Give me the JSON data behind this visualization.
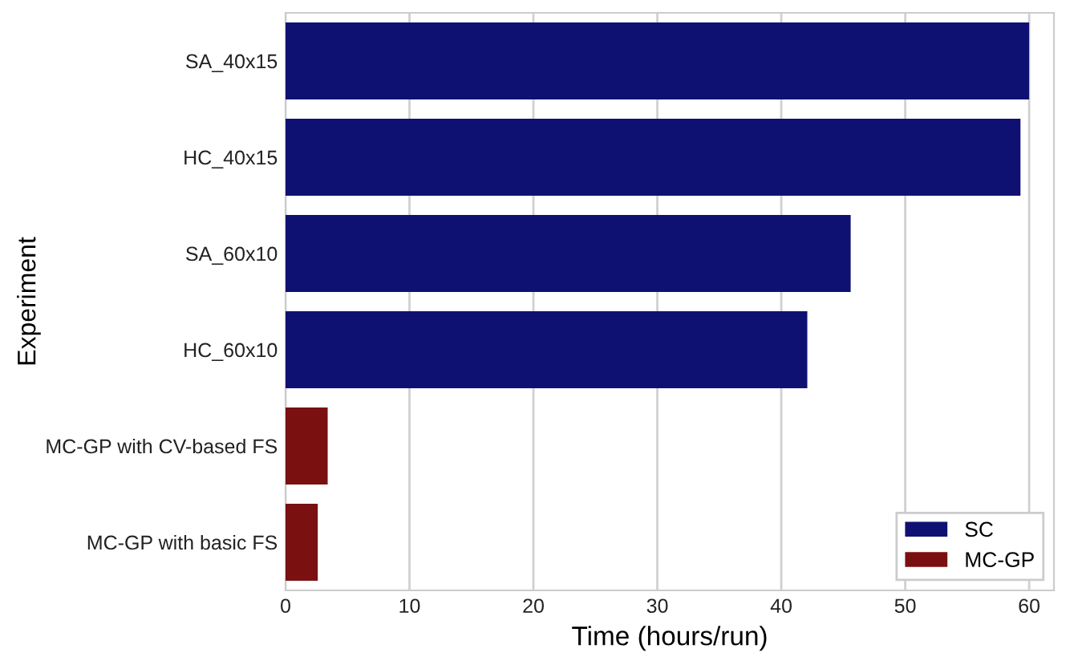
{
  "chart_data": {
    "type": "bar",
    "orientation": "horizontal",
    "xlabel": "Time (hours/run)",
    "ylabel": "Experiment",
    "categories": [
      "SA_40x15",
      "HC_40x15",
      "SA_60x10",
      "HC_60x10",
      "MC-GP with CV-based FS",
      "MC-GP with basic FS"
    ],
    "series": [
      {
        "name": "SC",
        "color": "#0f1172",
        "values": [
          60.0,
          59.3,
          45.6,
          42.1,
          null,
          null
        ]
      },
      {
        "name": "MC-GP",
        "color": "#7a1010",
        "values": [
          null,
          null,
          null,
          null,
          3.4,
          2.6
        ]
      }
    ],
    "xlim": [
      0,
      62
    ],
    "xticks": [
      0,
      10,
      20,
      30,
      40,
      50,
      60
    ],
    "grid": "x",
    "legend": "lower right"
  }
}
